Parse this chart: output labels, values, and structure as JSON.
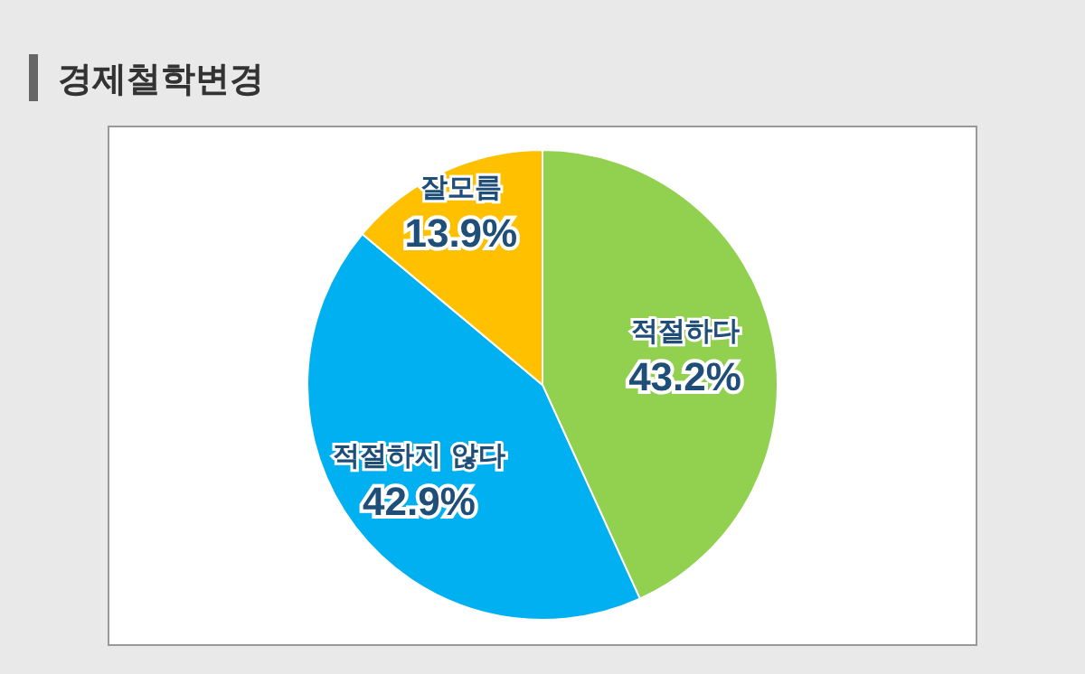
{
  "chart_data": {
    "type": "pie",
    "title": "경제철학변경",
    "categories": [
      "적절하다",
      "적절하지 않다",
      "잘모름"
    ],
    "values": [
      43.2,
      42.9,
      13.9
    ],
    "colors": [
      "#92d050",
      "#00b0f0",
      "#ffc000"
    ],
    "value_labels": [
      "43.2%",
      "42.9%",
      "13.9%"
    ]
  }
}
